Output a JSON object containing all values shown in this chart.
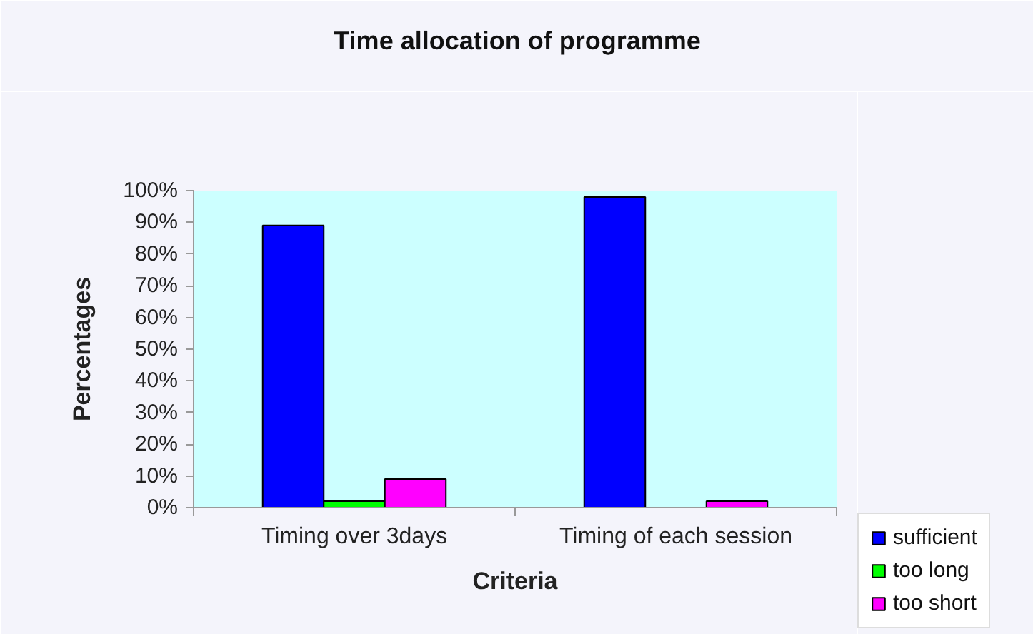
{
  "chart_data": {
    "type": "bar",
    "title": "Time allocation of programme",
    "xlabel": "Criteria",
    "ylabel": "Percentages",
    "categories": [
      "Timing over 3days",
      "Timing of each session"
    ],
    "series": [
      {
        "name": "sufficient",
        "color": "#0000ff",
        "values": [
          89,
          98
        ]
      },
      {
        "name": "too long",
        "color": "#00ff00",
        "values": [
          2,
          0
        ]
      },
      {
        "name": "too short",
        "color": "#ff00ff",
        "values": [
          9,
          2
        ]
      }
    ],
    "ylim": [
      0,
      100
    ],
    "yticks": [
      {
        "value": 0,
        "label": "0%"
      },
      {
        "value": 10,
        "label": "10%"
      },
      {
        "value": 20,
        "label": "20%"
      },
      {
        "value": 30,
        "label": "30%"
      },
      {
        "value": 40,
        "label": "40%"
      },
      {
        "value": 50,
        "label": "50%"
      },
      {
        "value": 60,
        "label": "60%"
      },
      {
        "value": 70,
        "label": "70%"
      },
      {
        "value": 80,
        "label": "80%"
      },
      {
        "value": 90,
        "label": "90%"
      },
      {
        "value": 100,
        "label": "100%"
      }
    ],
    "legend": "bottom right"
  }
}
